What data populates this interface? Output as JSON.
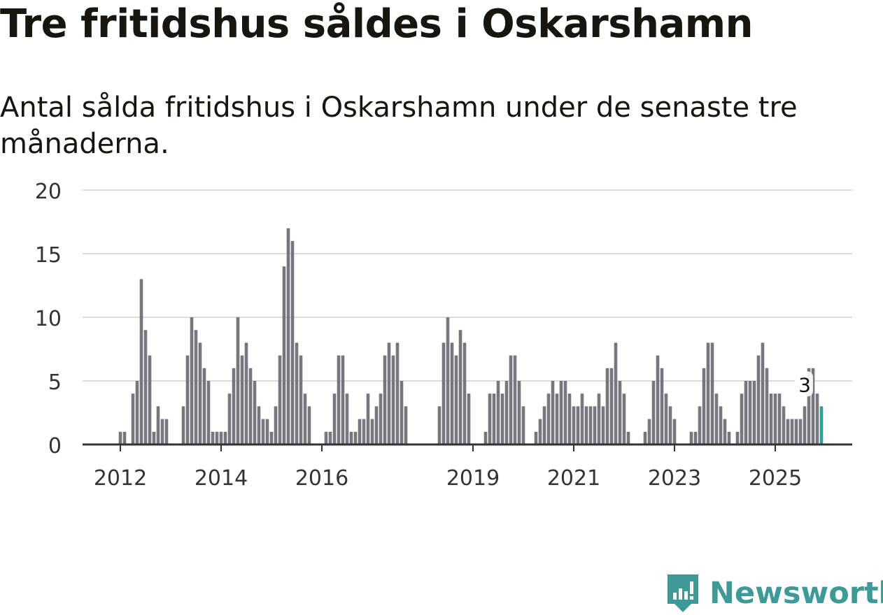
{
  "title": "Tre fritidshus såldes i Oskarshamn",
  "subtitle": "Antal sålda fritidshus i Oskarshamn under de senaste tre månaderna.",
  "brand": {
    "name": "Newsworthy",
    "icon": "newsworthy-logo-icon",
    "color": "#3d9a96"
  },
  "colors": {
    "bar": "#77767c",
    "highlight": "#2a9d94",
    "grid": "#dcdcdc",
    "axis": "#333333",
    "text": "#333333"
  },
  "chart_data": {
    "type": "bar",
    "title": "Tre fritidshus såldes i Oskarshamn",
    "xlabel": "",
    "ylabel": "",
    "ylim": [
      0,
      20
    ],
    "yticks": [
      0,
      5,
      10,
      15,
      20
    ],
    "grid": true,
    "x_start": "2011-12",
    "x_end": "2025-08",
    "xticks": [
      {
        "label": "2012",
        "month": "2012-01"
      },
      {
        "label": "2014",
        "month": "2014-01"
      },
      {
        "label": "2016",
        "month": "2016-01"
      },
      {
        "label": "2019",
        "month": "2019-01"
      },
      {
        "label": "2021",
        "month": "2021-01"
      },
      {
        "label": "2023",
        "month": "2023-01"
      },
      {
        "label": "2025",
        "month": "2025-01"
      }
    ],
    "series": [
      {
        "name": "Antal sålda fritidshus",
        "values": [
          0,
          1,
          1,
          0,
          4,
          5,
          13,
          9,
          7,
          1,
          3,
          2,
          2,
          0,
          0,
          0,
          3,
          7,
          10,
          9,
          8,
          6,
          5,
          1,
          1,
          1,
          1,
          4,
          6,
          10,
          7,
          8,
          6,
          5,
          3,
          2,
          2,
          1,
          3,
          7,
          14,
          17,
          16,
          8,
          7,
          4,
          3,
          0,
          0,
          0,
          1,
          1,
          4,
          7,
          7,
          4,
          1,
          1,
          2,
          2,
          4,
          2,
          3,
          4,
          7,
          8,
          7,
          8,
          5,
          3,
          0,
          0,
          0,
          0,
          0,
          0,
          0,
          3,
          8,
          10,
          8,
          7,
          9,
          8,
          4,
          0,
          0,
          0,
          1,
          4,
          4,
          5,
          4,
          5,
          7,
          7,
          5,
          3,
          0,
          0,
          1,
          2,
          3,
          4,
          5,
          4,
          5,
          5,
          4,
          3,
          3,
          4,
          3,
          3,
          3,
          4,
          3,
          6,
          6,
          8,
          5,
          4,
          1,
          0,
          0,
          0,
          1,
          2,
          5,
          7,
          6,
          4,
          3,
          2,
          0,
          0,
          0,
          1,
          1,
          3,
          6,
          8,
          8,
          4,
          3,
          2,
          1,
          0,
          1,
          4,
          5,
          5,
          5,
          7,
          8,
          6,
          4,
          4,
          4,
          3,
          2,
          2,
          2,
          2,
          3,
          6,
          6,
          4,
          3
        ]
      }
    ],
    "annotations": [
      {
        "text": "3",
        "month": "2025-08",
        "value": 3,
        "highlight": true
      }
    ]
  }
}
